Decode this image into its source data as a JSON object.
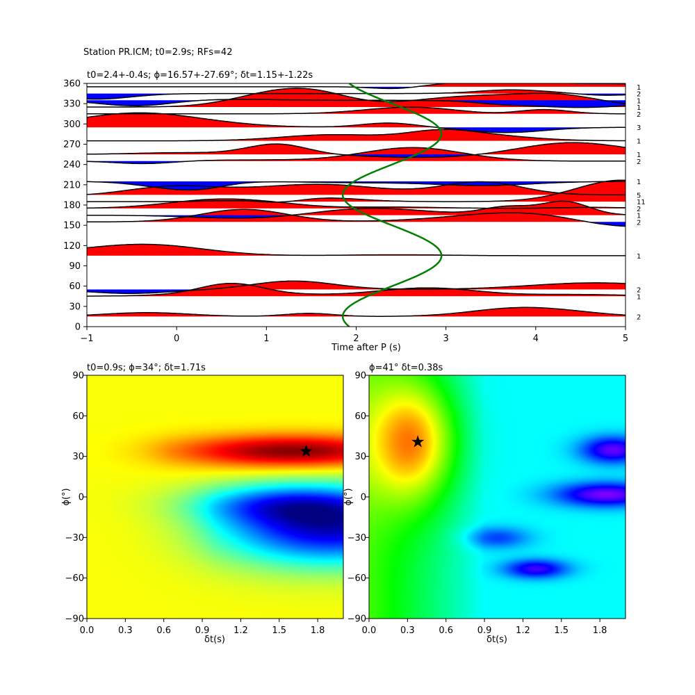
{
  "figure_title": "Station PR.ICM; t0=2.9s; RFs=42",
  "chart_data": [
    {
      "type": "line",
      "title": "t0=2.4+-0.4s; ϕ=16.57+-27.69°; δt=1.15+-1.22s",
      "xlabel": "Time after P (s)",
      "ylabel": "",
      "xlim": [
        -1,
        5
      ],
      "ylim": [
        0,
        360
      ],
      "xticks": [
        "−1",
        "0",
        "1",
        "2",
        "3",
        "4",
        "5"
      ],
      "yticks": [
        "0",
        "30",
        "60",
        "90",
        "120",
        "150",
        "180",
        "210",
        "240",
        "270",
        "300",
        "330",
        "360"
      ],
      "traces": [
        {
          "baz": 15,
          "count": "2"
        },
        {
          "baz": 45,
          "count": "1"
        },
        {
          "baz": 55,
          "count": "2"
        },
        {
          "baz": 105,
          "count": "1"
        },
        {
          "baz": 155,
          "count": "2"
        },
        {
          "baz": 165,
          "count": "1"
        },
        {
          "baz": 175,
          "count": "2"
        },
        {
          "baz": 185,
          "count": "11"
        },
        {
          "baz": 195,
          "count": "5"
        },
        {
          "baz": 215,
          "count": "1"
        },
        {
          "baz": 245,
          "count": "2"
        },
        {
          "baz": 255,
          "count": "1"
        },
        {
          "baz": 275,
          "count": "1"
        },
        {
          "baz": 295,
          "count": "3"
        },
        {
          "baz": 315,
          "count": "2"
        },
        {
          "baz": 325,
          "count": "1"
        },
        {
          "baz": 335,
          "count": "1"
        },
        {
          "baz": 345,
          "count": "2"
        },
        {
          "baz": 355,
          "count": "1"
        }
      ],
      "fit_curve": {
        "color": "#008000",
        "center_time": 2.4,
        "amplitude": 0.55,
        "period_deg": 180
      }
    },
    {
      "type": "heatmap",
      "title": "t0=0.9s; ϕ=34°; δt=1.71s",
      "xlabel": "δt(s)",
      "ylabel": "ϕ(°)",
      "xlim": [
        0,
        2
      ],
      "ylim": [
        -90,
        90
      ],
      "xticks": [
        "0.0",
        "0.3",
        "0.6",
        "0.9",
        "1.2",
        "1.5",
        "1.8"
      ],
      "yticks": [
        "−90",
        "−60",
        "−30",
        "0",
        "30",
        "60",
        "90"
      ],
      "colormap": "jet",
      "best": {
        "dt": 1.71,
        "phi": 34
      }
    },
    {
      "type": "heatmap",
      "title": "ϕ=41° δt=0.38s",
      "xlabel": "δt(s)",
      "ylabel": "ϕ(°)",
      "xlim": [
        0,
        2
      ],
      "ylim": [
        -90,
        90
      ],
      "xticks": [
        "0.0",
        "0.3",
        "0.6",
        "0.9",
        "1.2",
        "1.5",
        "1.8"
      ],
      "yticks": [
        "−90",
        "−60",
        "−30",
        "0",
        "30",
        "60",
        "90"
      ],
      "colormap": "gist_rainbow",
      "best": {
        "dt": 0.38,
        "phi": 41
      }
    }
  ]
}
